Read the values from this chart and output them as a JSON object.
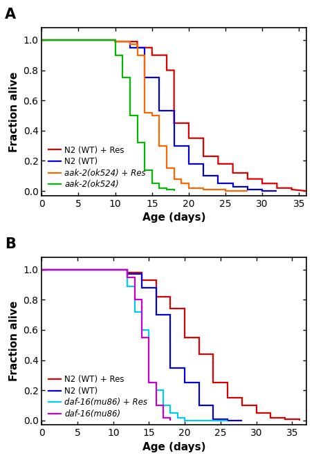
{
  "panel_A": {
    "title": "A",
    "series": [
      {
        "label": "N2 (WT) + Res",
        "color": "#dd0000",
        "italic_part": null,
        "x": [
          0,
          10,
          10,
          13,
          13,
          15,
          15,
          17,
          17,
          18,
          18,
          20,
          20,
          22,
          22,
          24,
          24,
          26,
          26,
          28,
          28,
          30,
          30,
          32,
          32,
          34,
          34,
          36
        ],
        "y": [
          1.0,
          1.0,
          0.99,
          0.99,
          0.95,
          0.95,
          0.9,
          0.9,
          0.8,
          0.8,
          0.45,
          0.45,
          0.35,
          0.35,
          0.23,
          0.23,
          0.18,
          0.18,
          0.12,
          0.12,
          0.08,
          0.08,
          0.05,
          0.05,
          0.02,
          0.02,
          0.01,
          0.0
        ]
      },
      {
        "label": "N2 (WT)",
        "color": "#0000dd",
        "italic_part": null,
        "x": [
          0,
          10,
          10,
          12,
          12,
          14,
          14,
          16,
          16,
          18,
          18,
          20,
          20,
          22,
          22,
          24,
          24,
          26,
          26,
          28,
          28,
          30,
          30,
          32,
          32
        ],
        "y": [
          1.0,
          1.0,
          0.99,
          0.99,
          0.95,
          0.95,
          0.75,
          0.75,
          0.53,
          0.53,
          0.3,
          0.3,
          0.18,
          0.18,
          0.1,
          0.1,
          0.05,
          0.05,
          0.03,
          0.03,
          0.01,
          0.01,
          0.0,
          0.0,
          0.0
        ]
      },
      {
        "label": "aak-2(ok524) + Res",
        "color": "#ff6600",
        "italic_part": "aak-2",
        "x": [
          0,
          10,
          10,
          12,
          12,
          13,
          13,
          14,
          14,
          15,
          15,
          16,
          16,
          17,
          17,
          18,
          18,
          19,
          19,
          20,
          20,
          22,
          22,
          25,
          25,
          28,
          28
        ],
        "y": [
          1.0,
          1.0,
          0.99,
          0.99,
          0.97,
          0.97,
          0.9,
          0.9,
          0.52,
          0.52,
          0.5,
          0.5,
          0.3,
          0.3,
          0.15,
          0.15,
          0.08,
          0.08,
          0.05,
          0.05,
          0.02,
          0.02,
          0.01,
          0.01,
          0.0,
          0.0,
          0.0
        ]
      },
      {
        "label": "aak-2(ok524)",
        "color": "#00bb00",
        "italic_part": "aak-2",
        "x": [
          0,
          10,
          10,
          11,
          11,
          12,
          12,
          13,
          13,
          14,
          14,
          15,
          15,
          16,
          16,
          17,
          17,
          18,
          18
        ],
        "y": [
          1.0,
          1.0,
          0.9,
          0.9,
          0.75,
          0.75,
          0.5,
          0.5,
          0.32,
          0.32,
          0.14,
          0.14,
          0.05,
          0.05,
          0.02,
          0.02,
          0.01,
          0.01,
          0.0
        ]
      }
    ],
    "xlim": [
      0,
      36
    ],
    "ylim": [
      -0.03,
      1.08
    ],
    "xticks": [
      0,
      5,
      10,
      15,
      20,
      25,
      30,
      35
    ],
    "yticks": [
      0,
      0.2,
      0.4,
      0.6,
      0.8,
      1.0
    ],
    "xlabel": "Age (days)",
    "ylabel": "Fraction alive"
  },
  "panel_B": {
    "title": "B",
    "series": [
      {
        "label": "N2 (WT) + Res",
        "color": "#dd0000",
        "italic_part": null,
        "x": [
          0,
          12,
          12,
          14,
          14,
          16,
          16,
          18,
          18,
          20,
          20,
          22,
          22,
          24,
          24,
          26,
          26,
          28,
          28,
          30,
          30,
          32,
          32,
          34,
          34,
          36,
          36
        ],
        "y": [
          1.0,
          1.0,
          0.98,
          0.98,
          0.93,
          0.93,
          0.82,
          0.82,
          0.74,
          0.74,
          0.55,
          0.55,
          0.44,
          0.44,
          0.25,
          0.25,
          0.15,
          0.15,
          0.1,
          0.1,
          0.05,
          0.05,
          0.02,
          0.02,
          0.01,
          0.01,
          0.0
        ]
      },
      {
        "label": "N2 (WT)",
        "color": "#0000dd",
        "italic_part": null,
        "x": [
          0,
          12,
          12,
          14,
          14,
          16,
          16,
          18,
          18,
          20,
          20,
          22,
          22,
          24,
          24,
          26,
          26,
          28,
          28
        ],
        "y": [
          1.0,
          1.0,
          0.97,
          0.97,
          0.88,
          0.88,
          0.7,
          0.7,
          0.35,
          0.35,
          0.25,
          0.25,
          0.1,
          0.1,
          0.01,
          0.01,
          0.0,
          0.0,
          0.0
        ]
      },
      {
        "label": "daf-16(mu86) + Res",
        "color": "#00ccee",
        "italic_part": "daf-16",
        "x": [
          0,
          12,
          12,
          13,
          13,
          14,
          14,
          15,
          15,
          16,
          16,
          17,
          17,
          18,
          18,
          19,
          19,
          20,
          20,
          22,
          22,
          24,
          24,
          26,
          26
        ],
        "y": [
          1.0,
          1.0,
          0.89,
          0.89,
          0.72,
          0.72,
          0.6,
          0.6,
          0.25,
          0.25,
          0.2,
          0.2,
          0.1,
          0.1,
          0.05,
          0.05,
          0.02,
          0.02,
          0.0,
          0.0,
          0.0,
          0.0,
          0.0,
          0.0,
          0.0
        ]
      },
      {
        "label": "daf-16(mu86)",
        "color": "#cc00cc",
        "italic_part": "daf-16",
        "x": [
          0,
          12,
          12,
          13,
          13,
          14,
          14,
          15,
          15,
          16,
          16,
          17,
          17,
          18,
          18
        ],
        "y": [
          1.0,
          1.0,
          0.95,
          0.95,
          0.8,
          0.8,
          0.55,
          0.55,
          0.25,
          0.25,
          0.1,
          0.1,
          0.02,
          0.02,
          0.0
        ]
      }
    ],
    "xlim": [
      0,
      37
    ],
    "ylim": [
      -0.03,
      1.08
    ],
    "xticks": [
      0,
      5,
      10,
      15,
      20,
      25,
      30,
      35
    ],
    "yticks": [
      0,
      0.2,
      0.4,
      0.6,
      0.8,
      1.0
    ],
    "xlabel": "Age (days)",
    "ylabel": "Fraction alive"
  },
  "linewidth": 1.6,
  "figure_bg": "#ffffff",
  "axes_bg": "#ffffff"
}
